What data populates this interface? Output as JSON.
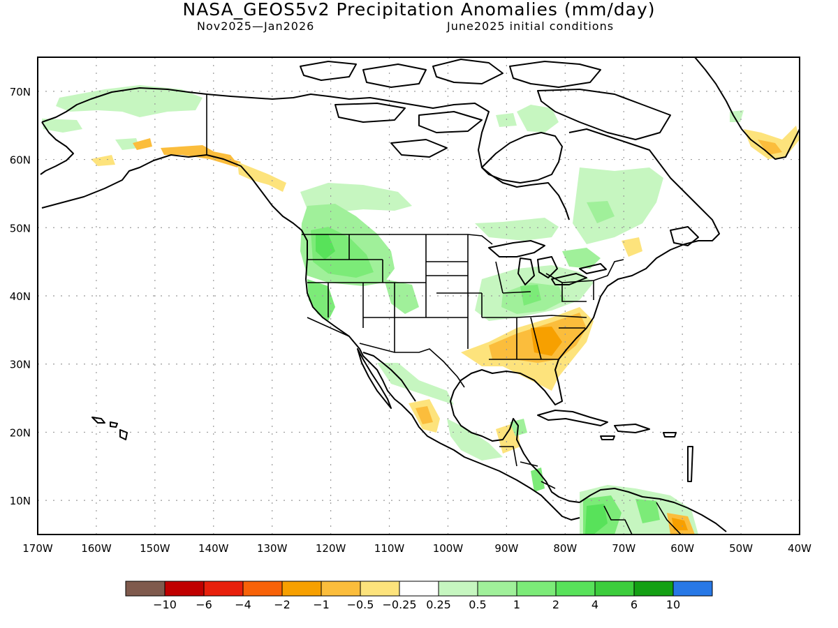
{
  "title": "NASA_GEOS5v2 Precipitation Anomalies (mm/day)",
  "subtitle_left": "Nov2025—Jan2026",
  "subtitle_right": "June2025 initial conditions",
  "axes": {
    "lon_labels": [
      "170W",
      "160W",
      "150W",
      "140W",
      "130W",
      "120W",
      "110W",
      "100W",
      "90W",
      "80W",
      "70W",
      "60W",
      "50W",
      "40W"
    ],
    "lat_labels": [
      "70N",
      "60N",
      "50N",
      "40N",
      "30N",
      "20N",
      "10N"
    ],
    "lon_range": [
      -170,
      -40
    ],
    "lat_range": [
      5,
      75
    ],
    "grid": "dotted"
  },
  "colorbar": {
    "colors": [
      "#7f5a4d",
      "#c00000",
      "#e8200c",
      "#f86208",
      "#f7a000",
      "#fbbd3c",
      "#fde37c",
      "#ffffff",
      "#c6f6c0",
      "#a0f09a",
      "#7ceb78",
      "#58e25a",
      "#3ccd3c",
      "#14a014",
      "#2878e6"
    ],
    "labels": [
      "−10",
      "−6",
      "−4",
      "−2",
      "−1",
      "−0.5",
      "−0.25",
      "0.25",
      "0.5",
      "1",
      "2",
      "4",
      "6",
      "10"
    ]
  },
  "anomaly_regions": [
    {
      "name": "Alaska north slope",
      "level": 0.25
    },
    {
      "name": "Gulf of Alaska coast",
      "level": -0.5
    },
    {
      "name": "Pacific Northwest",
      "level": 1
    },
    {
      "name": "Ohio Valley",
      "level": 0.5
    },
    {
      "name": "Southeast US",
      "level": -1
    },
    {
      "name": "Gulf Coast",
      "level": -0.5
    },
    {
      "name": "Eastern Canada",
      "level": 0.25
    },
    {
      "name": "Mexico west coast",
      "level": -0.5
    },
    {
      "name": "Colombia",
      "level": 2
    },
    {
      "name": "Greenland south tip",
      "level": -0.5
    }
  ]
}
